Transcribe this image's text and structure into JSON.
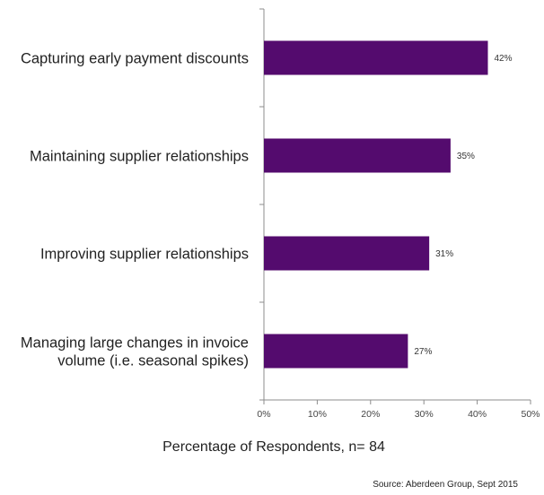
{
  "chart_data": {
    "type": "bar",
    "orientation": "horizontal",
    "categories": [
      [
        "Capturing early payment discounts"
      ],
      [
        "Maintaining supplier relationships"
      ],
      [
        "Improving supplier relationships"
      ],
      [
        "Managing large changes in invoice",
        "volume (i.e. seasonal spikes)"
      ]
    ],
    "values": [
      42,
      35,
      31,
      27
    ],
    "data_labels": [
      "42%",
      "35%",
      "31%",
      "27%"
    ],
    "xlim": [
      0,
      50
    ],
    "xticks": [
      0,
      10,
      20,
      30,
      40,
      50
    ],
    "xtick_labels": [
      "0%",
      "10%",
      "20%",
      "30%",
      "40%",
      "50%"
    ],
    "xlabel": "Percentage of Respondents, n= 84",
    "source": "Source: Aberdeen Group, Sept 2015",
    "grid": false,
    "legend": "none",
    "bar_color": "#540B6E"
  }
}
